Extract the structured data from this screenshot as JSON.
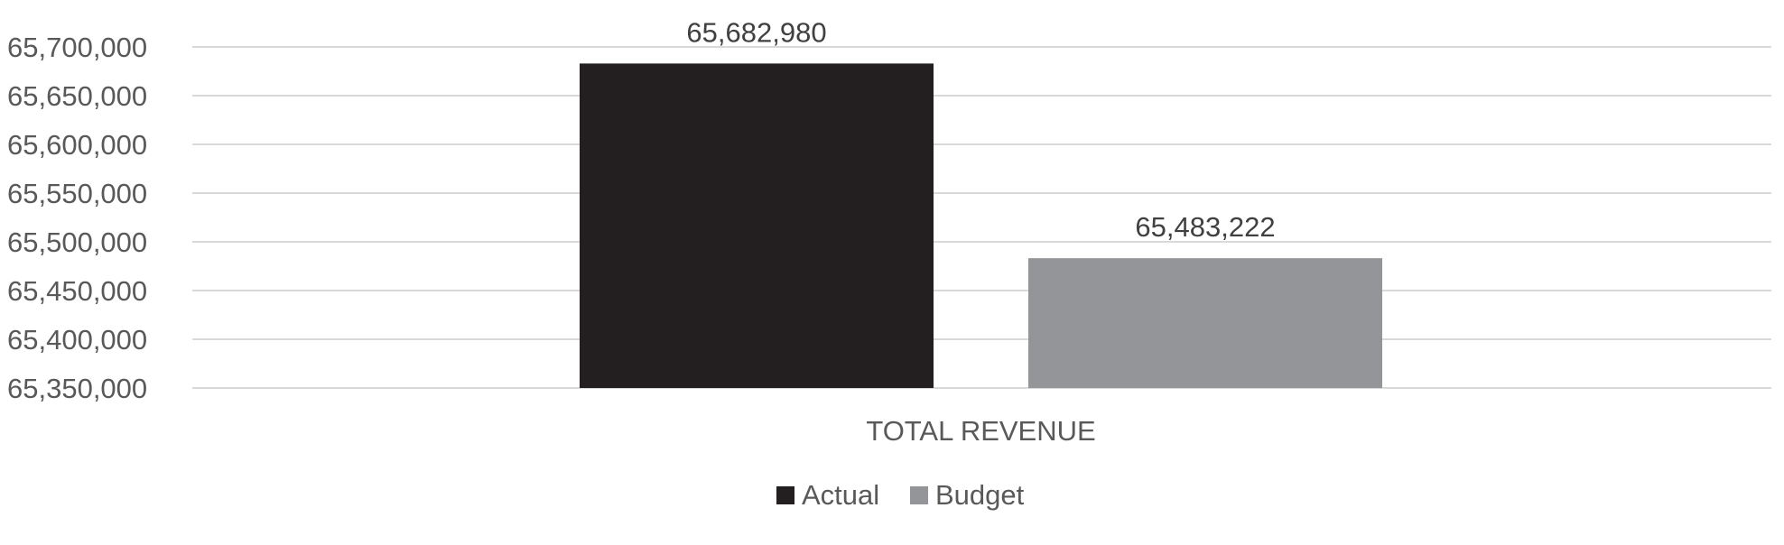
{
  "chart_data": {
    "type": "bar",
    "categories": [
      "TOTAL REVENUE"
    ],
    "series": [
      {
        "name": "Actual",
        "values": [
          65682980
        ],
        "color": "#231f20"
      },
      {
        "name": "Budget",
        "values": [
          65483222
        ],
        "color": "#939598"
      }
    ],
    "data_labels": [
      "65,682,980",
      "65,483,222"
    ],
    "y_ticks": [
      65350000,
      65400000,
      65450000,
      65500000,
      65550000,
      65600000,
      65650000,
      65700000
    ],
    "y_tick_labels": [
      "65,350,000",
      "65,400,000",
      "65,450,000",
      "65,500,000",
      "65,550,000",
      "65,600,000",
      "65,650,000",
      "65,700,000"
    ],
    "ylim": [
      65350000,
      65700000
    ],
    "title": "",
    "xlabel": "",
    "ylabel": "",
    "grid": true,
    "legend_position": "bottom"
  }
}
